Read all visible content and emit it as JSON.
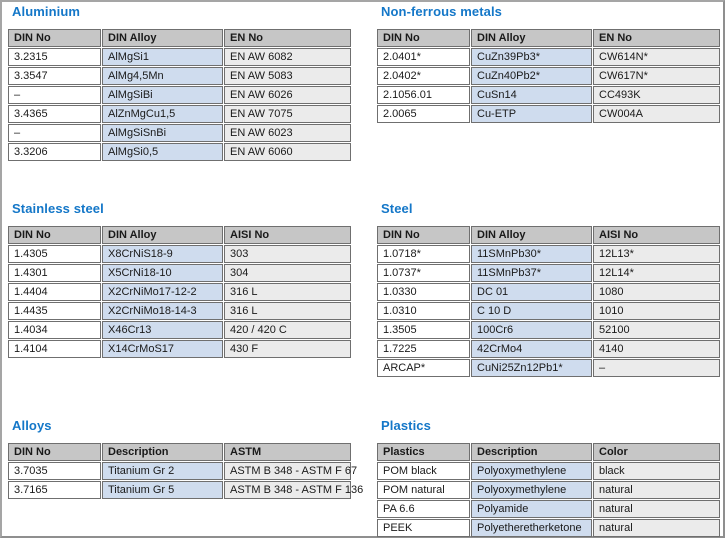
{
  "page": {
    "accent_color": "#1477c8",
    "header_bg": "#c6c6c6",
    "alloy_column_bg": "#cfdcee",
    "right_column_bg": "#ebebeb",
    "border_color": "#6f6f6f"
  },
  "sections": [
    {
      "title": "Aluminium",
      "columns": [
        "DIN No",
        "DIN Alloy",
        "EN No"
      ],
      "rows": [
        [
          "3.2315",
          "AlMgSi1",
          "EN AW 6082"
        ],
        [
          "3.3547",
          "AlMg4,5Mn",
          "EN AW 5083"
        ],
        [
          "–",
          "AlMgSiBi",
          "EN AW 6026"
        ],
        [
          "3.4365",
          "AlZnMgCu1,5",
          "EN AW 7075"
        ],
        [
          "–",
          "AlMgSiSnBi",
          "EN AW 6023"
        ],
        [
          "3.3206",
          "AlMgSi0,5",
          "EN AW 6060"
        ]
      ]
    },
    {
      "title": "Non-ferrous metals",
      "columns": [
        "DIN No",
        "DIN Alloy",
        "EN No"
      ],
      "rows": [
        [
          "2.0401*",
          "CuZn39Pb3*",
          "CW614N*"
        ],
        [
          "2.0402*",
          "CuZn40Pb2*",
          "CW617N*"
        ],
        [
          "2.1056.01",
          "CuSn14",
          "CC493K"
        ],
        [
          "2.0065",
          "Cu-ETP",
          "CW004A"
        ]
      ]
    },
    {
      "title": "Stainless steel",
      "columns": [
        "DIN No",
        "DIN Alloy",
        "AISI No"
      ],
      "rows": [
        [
          "1.4305",
          "X8CrNiS18-9",
          "303"
        ],
        [
          "1.4301",
          "X5CrNi18-10",
          "304"
        ],
        [
          "1.4404",
          "X2CrNiMo17-12-2",
          "316 L"
        ],
        [
          "1.4435",
          "X2CrNiMo18-14-3",
          "316 L"
        ],
        [
          "1.4034",
          "X46Cr13",
          "420 / 420 C"
        ],
        [
          "1.4104",
          "X14CrMoS17",
          "430 F"
        ]
      ]
    },
    {
      "title": "Steel",
      "columns": [
        "DIN No",
        "DIN Alloy",
        "AISI No"
      ],
      "rows": [
        [
          "1.0718*",
          "11SMnPb30*",
          "12L13*"
        ],
        [
          "1.0737*",
          "11SMnPb37*",
          "12L14*"
        ],
        [
          "1.0330",
          "DC 01",
          "1080"
        ],
        [
          "1.0310",
          "C 10 D",
          "1010"
        ],
        [
          "1.3505",
          "100Cr6",
          "52100"
        ],
        [
          "1.7225",
          "42CrMo4",
          "4140"
        ],
        [
          "ARCAP*",
          "CuNi25Zn12Pb1*",
          "–"
        ]
      ]
    },
    {
      "title": "Alloys",
      "columns": [
        "DIN No",
        "Description",
        "ASTM"
      ],
      "rows": [
        [
          "3.7035",
          "Titanium Gr 2",
          "ASTM B 348 - ASTM F 67"
        ],
        [
          "3.7165",
          "Titanium Gr 5",
          "ASTM B 348 - ASTM F 136"
        ]
      ]
    },
    {
      "title": "Plastics",
      "columns": [
        "Plastics",
        "Description",
        "Color"
      ],
      "rows": [
        [
          "POM black",
          "Polyoxymethylene",
          "black"
        ],
        [
          "POM natural",
          "Polyoxymethylene",
          "natural"
        ],
        [
          "PA 6.6",
          "Polyamide",
          "natural"
        ],
        [
          "PEEK",
          "Polyetheretherketone",
          "natural"
        ]
      ]
    }
  ]
}
